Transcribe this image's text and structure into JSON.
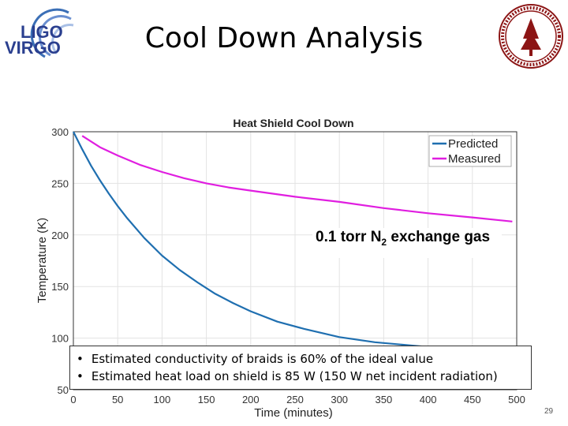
{
  "slide": {
    "title": "Cool Down Analysis",
    "page_number": "29",
    "logo_text": [
      "LIGO",
      "VIRGO"
    ]
  },
  "annotation": {
    "prefix": "0.1 torr N",
    "subscript": "2",
    "suffix": " exchange gas"
  },
  "bullets": [
    "Estimated conductivity of braids is 60% of the ideal value",
    "Estimated heat load on shield is 85 W (150 W net incident radiation)"
  ],
  "colors": {
    "predicted": "#1f6fb0",
    "measured": "#e01ee0",
    "ligo_blue": "#2a3f8f"
  },
  "chart_data": {
    "type": "line",
    "title": "Heat Shield Cool Down",
    "xlabel": "Time (minutes)",
    "ylabel": "Temperature (K)",
    "xlim": [
      0,
      500
    ],
    "ylim": [
      50,
      300
    ],
    "xticks": [
      0,
      50,
      100,
      150,
      200,
      250,
      300,
      350,
      400,
      450,
      500
    ],
    "yticks": [
      50,
      100,
      150,
      200,
      250,
      300
    ],
    "grid": true,
    "legend_position": "top-right",
    "series": [
      {
        "name": "Predicted",
        "x": [
          0,
          10,
          20,
          30,
          40,
          50,
          60,
          80,
          100,
          120,
          140,
          160,
          180,
          200,
          230,
          260,
          300,
          340,
          380,
          420,
          460,
          500
        ],
        "y": [
          300,
          283,
          267,
          253,
          240,
          228,
          217,
          197,
          180,
          166,
          154,
          143,
          134,
          126,
          116,
          109,
          101,
          96,
          93,
          90,
          88,
          86
        ]
      },
      {
        "name": "Measured",
        "x": [
          10,
          30,
          50,
          75,
          100,
          125,
          150,
          175,
          200,
          250,
          300,
          350,
          400,
          450,
          495
        ],
        "y": [
          296,
          285,
          277,
          268,
          261,
          255,
          250,
          246,
          243,
          237,
          232,
          226,
          221,
          217,
          213
        ]
      }
    ]
  }
}
